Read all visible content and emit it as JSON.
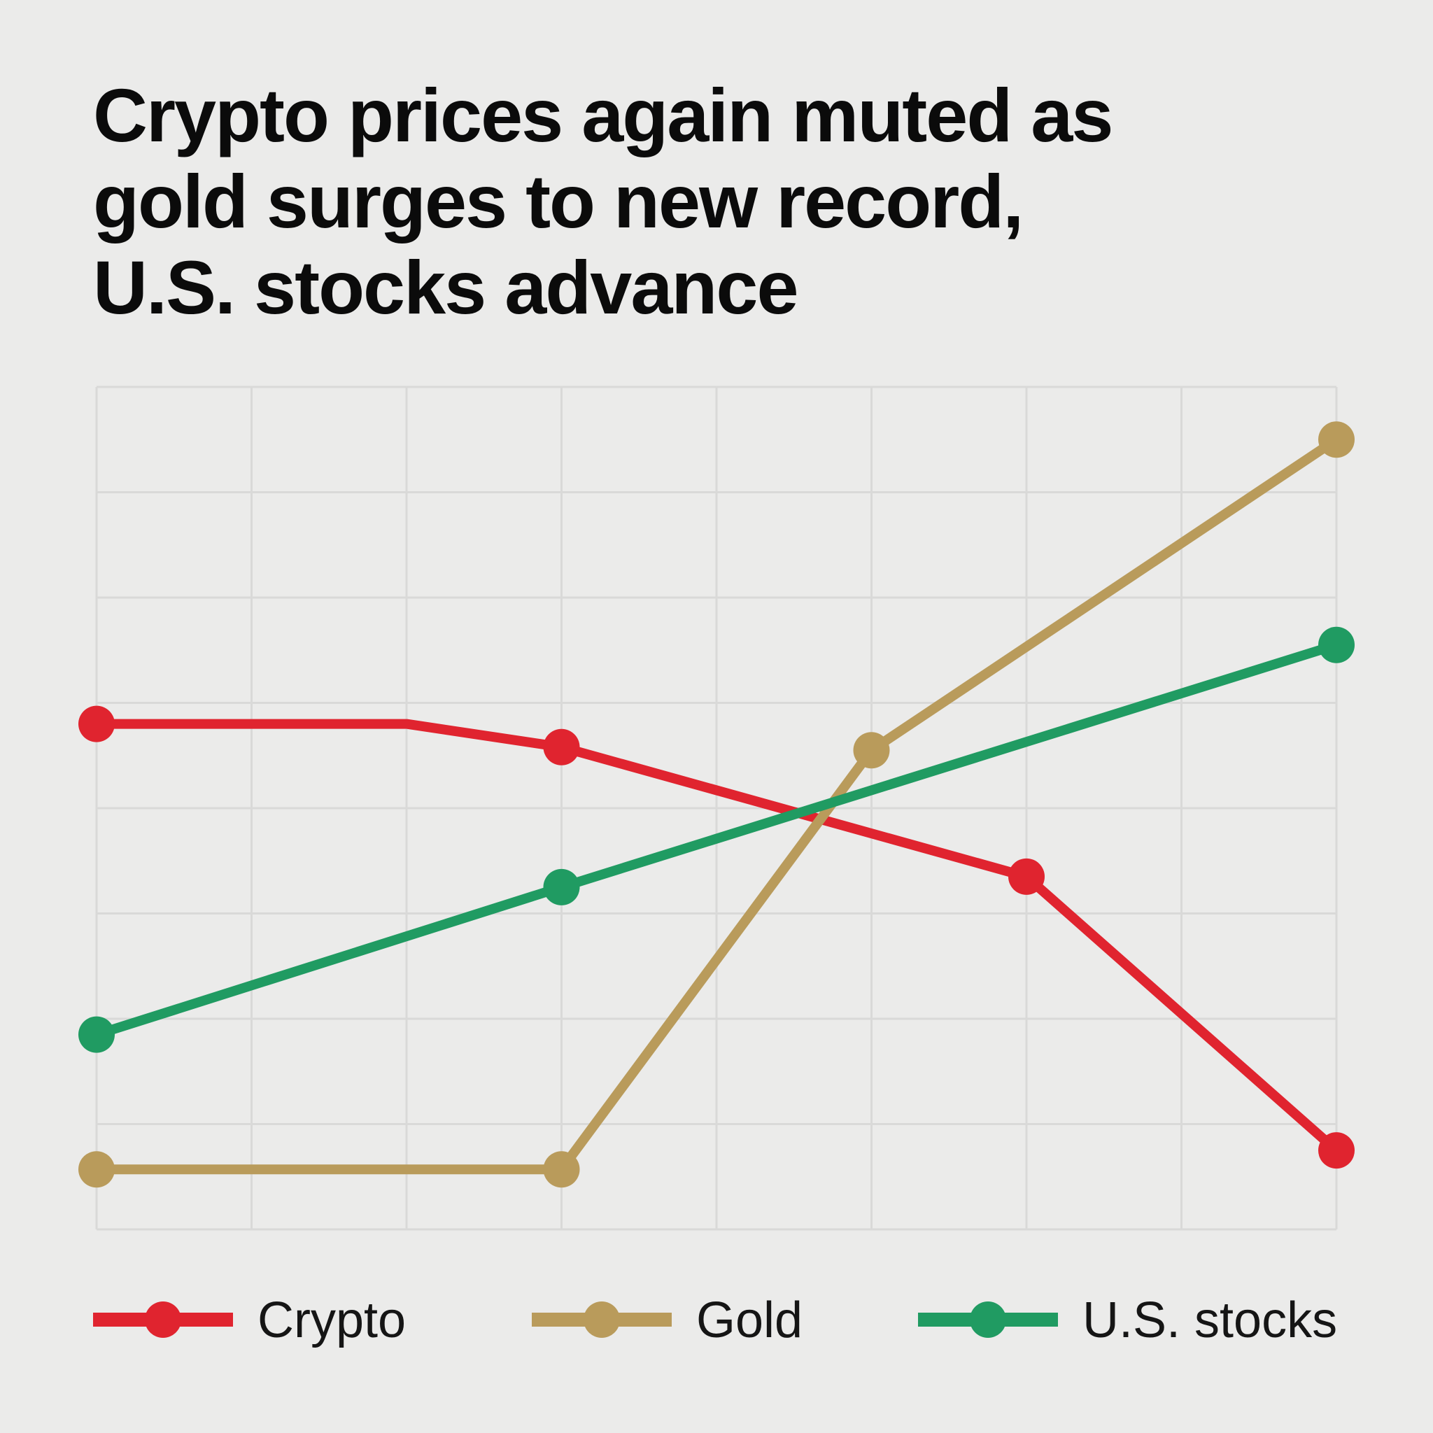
{
  "chart_data": {
    "type": "line",
    "title_lines": [
      "Crypto prices again muted as",
      "gold surges to new record,",
      "U.S. stocks advance"
    ],
    "xlabel": "",
    "ylabel": "",
    "x": [
      0,
      1,
      2,
      3,
      4,
      5,
      6,
      7,
      8
    ],
    "xlim": [
      0,
      8
    ],
    "ylim": [
      0,
      8
    ],
    "grid": true,
    "legend_position": "bottom",
    "series": [
      {
        "name": "Crypto",
        "color": "#e0242f",
        "x": [
          0,
          2,
          3,
          6,
          8
        ],
        "values": [
          4.8,
          4.8,
          4.58,
          3.35,
          0.75
        ],
        "markers": [
          0,
          3,
          6,
          8
        ]
      },
      {
        "name": "Gold",
        "color": "#b99b5b",
        "x": [
          0,
          3,
          5,
          8
        ],
        "values": [
          0.57,
          0.57,
          4.55,
          7.5
        ],
        "markers": [
          0,
          3,
          5,
          8
        ]
      },
      {
        "name": "U.S. stocks",
        "color": "#209b62",
        "x": [
          0,
          3,
          8
        ],
        "values": [
          1.85,
          3.25,
          5.55
        ],
        "markers": [
          0,
          3,
          8
        ]
      }
    ]
  }
}
